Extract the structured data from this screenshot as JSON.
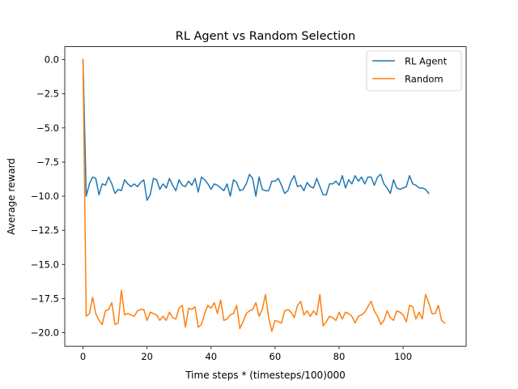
{
  "chart_data": {
    "type": "line",
    "title": "RL Agent vs Random Selection",
    "xlabel": "Time steps * (timesteps/100)000",
    "ylabel": "Average reward",
    "xlim": [
      -5.7,
      119.7
    ],
    "ylim": [
      -20.99,
      0.95
    ],
    "xticks": [
      0,
      20,
      40,
      60,
      80,
      100
    ],
    "yticks": [
      0.0,
      -2.5,
      -5.0,
      -7.5,
      -10.0,
      -12.5,
      -15.0,
      -17.5,
      -20.0
    ],
    "xtick_labels": [
      "0",
      "20",
      "40",
      "60",
      "80",
      "100"
    ],
    "ytick_labels": [
      "0.0",
      "−2.5",
      "−5.0",
      "−7.5",
      "−10.0",
      "−12.5",
      "−15.0",
      "−17.5",
      "−20.0"
    ],
    "grid": false,
    "legend_position": "top-right",
    "series": [
      {
        "name": "RL Agent",
        "color": "#1f77b4",
        "values": [
          0.0,
          -10.0,
          -9.1,
          -8.6,
          -8.7,
          -9.9,
          -9.1,
          -9.2,
          -8.6,
          -9.1,
          -9.8,
          -9.5,
          -9.6,
          -8.8,
          -9.1,
          -9.3,
          -9.1,
          -9.3,
          -9.0,
          -8.8,
          -10.3,
          -9.9,
          -8.7,
          -8.8,
          -9.5,
          -9.1,
          -9.4,
          -8.7,
          -9.2,
          -9.6,
          -8.8,
          -9.2,
          -9.3,
          -8.9,
          -9.2,
          -8.7,
          -9.7,
          -8.6,
          -8.8,
          -9.1,
          -9.5,
          -9.1,
          -9.2,
          -9.4,
          -9.6,
          -9.1,
          -10.0,
          -8.8,
          -9.0,
          -9.6,
          -9.5,
          -9.1,
          -8.4,
          -8.7,
          -10.0,
          -8.6,
          -9.5,
          -9.6,
          -9.6,
          -8.9,
          -8.9,
          -8.7,
          -9.2,
          -9.8,
          -9.6,
          -8.9,
          -8.5,
          -9.3,
          -9.2,
          -9.6,
          -9.0,
          -9.3,
          -9.4,
          -8.7,
          -9.3,
          -9.9,
          -9.9,
          -9.1,
          -9.1,
          -8.9,
          -9.2,
          -8.5,
          -9.4,
          -8.8,
          -9.1,
          -8.5,
          -8.9,
          -8.6,
          -9.1,
          -8.6,
          -8.6,
          -9.2,
          -8.6,
          -8.4,
          -9.1,
          -9.4,
          -9.8,
          -8.8,
          -9.4,
          -9.5,
          -9.4,
          -9.3,
          -8.5,
          -9.1,
          -9.2,
          -9.4,
          -9.4,
          -9.5,
          -9.8
        ]
      },
      {
        "name": "Random",
        "color": "#ff7f0e",
        "values": [
          0.0,
          -18.8,
          -18.6,
          -17.4,
          -18.6,
          -19.1,
          -19.4,
          -18.4,
          -18.3,
          -17.8,
          -19.4,
          -19.3,
          -16.9,
          -18.7,
          -18.6,
          -18.7,
          -18.8,
          -18.4,
          -18.3,
          -18.3,
          -19.1,
          -18.5,
          -18.6,
          -18.7,
          -19.1,
          -18.8,
          -19.1,
          -18.5,
          -18.9,
          -19.0,
          -18.2,
          -18.0,
          -19.6,
          -18.2,
          -18.3,
          -18.1,
          -19.6,
          -19.4,
          -18.6,
          -18.0,
          -18.2,
          -17.8,
          -18.6,
          -17.6,
          -19.1,
          -19.0,
          -18.7,
          -18.6,
          -18.0,
          -19.7,
          -19.2,
          -18.6,
          -18.4,
          -18.3,
          -17.8,
          -18.8,
          -18.3,
          -17.2,
          -18.9,
          -19.9,
          -19.1,
          -19.2,
          -19.3,
          -18.4,
          -18.3,
          -18.5,
          -18.9,
          -18.0,
          -17.7,
          -18.7,
          -18.4,
          -18.8,
          -18.4,
          -18.7,
          -17.2,
          -19.5,
          -19.2,
          -18.8,
          -18.9,
          -19.1,
          -18.5,
          -19.0,
          -18.5,
          -18.6,
          -18.8,
          -19.3,
          -18.8,
          -18.7,
          -18.5,
          -18.1,
          -17.7,
          -18.4,
          -18.8,
          -19.4,
          -19.1,
          -18.4,
          -18.9,
          -19.1,
          -18.4,
          -18.5,
          -18.7,
          -19.2,
          -18.0,
          -18.1,
          -19.0,
          -18.5,
          -19.0,
          -17.2,
          -17.8,
          -18.6,
          -18.6,
          -18.0,
          -19.1,
          -19.3
        ]
      }
    ]
  }
}
